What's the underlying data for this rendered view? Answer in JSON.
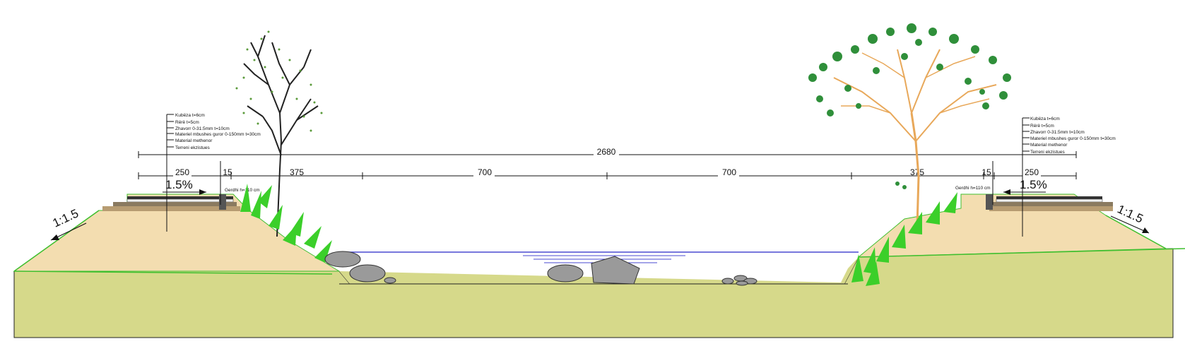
{
  "dimensions": {
    "total": "2680",
    "left_berm": "250",
    "left_curb": "15",
    "left_slope": "375",
    "channel_left": "700",
    "channel_right": "700",
    "right_slope": "375",
    "right_curb": "15",
    "right_berm": "250"
  },
  "slopes": {
    "left_grade": "1.5%",
    "right_grade": "1.5%",
    "left_embankment": "1:1.5",
    "right_embankment": "1:1.5"
  },
  "left_layers": [
    "Kubëza t=6cm",
    "Rërë t=5cm",
    "Zhavorr 0-31.5mm t=10cm",
    "Materiel mbushes guror 0-150mm t=30cm",
    "Material methenor",
    "Terreni ekzistues"
  ],
  "right_layers": [
    "Kubëza t=6cm",
    "Rërë t=5cm",
    "Zhavorr 0-31.5mm t=10cm",
    "Materiel mbushes guror 0-150mm t=30cm",
    "Material methenor",
    "Terreni ekzistues"
  ],
  "left_note": "Gerdhi h=110 cm",
  "right_note": "Gerdhi h=110 cm",
  "colors": {
    "ground": "#d6d98a",
    "embankment": "#f3ddb0",
    "grass_line": "#3fbf2f",
    "water_line": "#4a4ad0",
    "tree_foliage": "#2f8f3a",
    "tree_trunk": "#e8a85a"
  }
}
